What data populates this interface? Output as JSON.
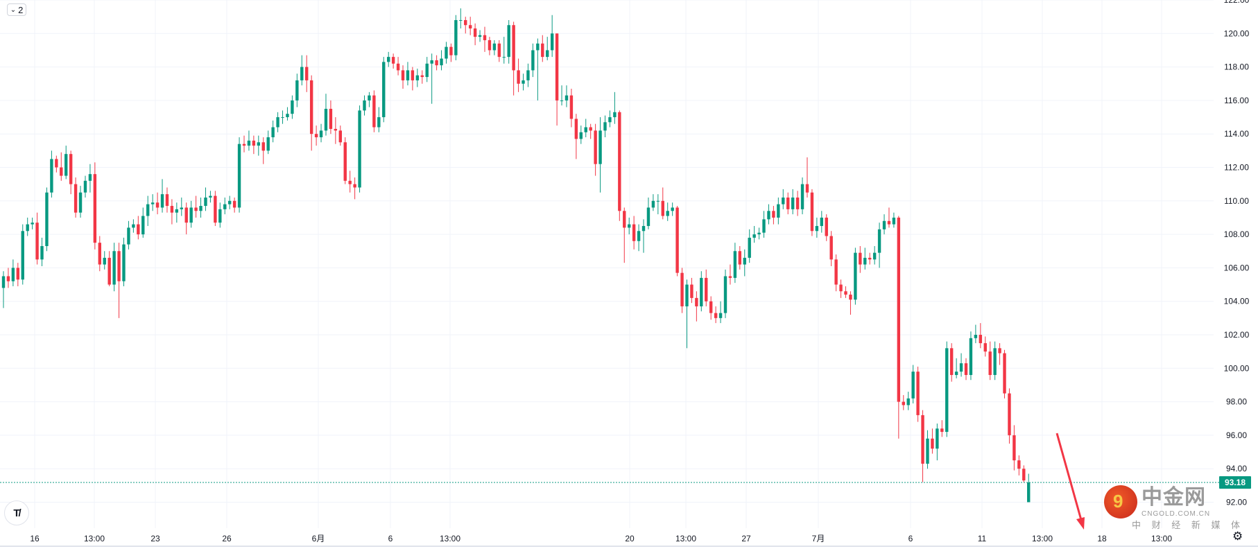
{
  "legend_toggle": {
    "icon": "chevron-down-icon",
    "count": "2"
  },
  "colors": {
    "up": "#089981",
    "down": "#f23645",
    "grid": "#f0f3fa",
    "text": "#131722",
    "price_line": "#089981",
    "arrow": "#f23645"
  },
  "watermark": {
    "logo_glyph": "9",
    "name": "中金网",
    "domain": "CNGOLD.COM.CN",
    "slogan": "中 财 经 新 媒 体"
  },
  "branding": {
    "tv_logo": "TV"
  },
  "settings_icon": "gear-icon",
  "chart_data": {
    "type": "candlestick",
    "ylim": [
      92,
      122
    ],
    "grid": true,
    "y_ticks": [
      "92.00",
      "94.00",
      "96.00",
      "98.00",
      "100.00",
      "102.00",
      "104.00",
      "106.00",
      "108.00",
      "110.00",
      "112.00",
      "114.00",
      "116.00",
      "118.00",
      "120.00",
      "122.00"
    ],
    "x_ticks": [
      "16",
      "13:00",
      "23",
      "26",
      "6月",
      "6",
      "13:00",
      "20",
      "13:00",
      "27",
      "7月",
      "6",
      "11",
      "13:00",
      "18",
      "13:00"
    ],
    "last_price": "93.18",
    "annotation": "red arrow pointing down",
    "ohlc": [
      [
        104.8,
        105.8,
        103.6,
        105.5
      ],
      [
        105.5,
        106.0,
        104.8,
        105.2
      ],
      [
        105.2,
        106.5,
        104.9,
        106.0
      ],
      [
        106.0,
        106.3,
        104.9,
        105.3
      ],
      [
        105.3,
        108.6,
        105.0,
        108.2
      ],
      [
        108.2,
        109.0,
        107.9,
        108.6
      ],
      [
        108.6,
        109.0,
        108.3,
        108.7
      ],
      [
        108.7,
        109.3,
        106.2,
        106.5
      ],
      [
        106.5,
        107.8,
        106.1,
        107.3
      ],
      [
        107.3,
        110.8,
        107.0,
        110.5
      ],
      [
        110.5,
        113.0,
        110.2,
        112.5
      ],
      [
        112.5,
        112.7,
        111.7,
        112.0
      ],
      [
        112.0,
        112.9,
        111.2,
        111.5
      ],
      [
        111.5,
        113.3,
        111.3,
        112.8
      ],
      [
        112.8,
        113.0,
        110.4,
        111.0
      ],
      [
        111.0,
        111.4,
        109.0,
        109.3
      ],
      [
        109.3,
        110.9,
        109.0,
        110.5
      ],
      [
        110.5,
        111.5,
        110.2,
        111.2
      ],
      [
        111.2,
        112.2,
        110.5,
        111.6
      ],
      [
        111.6,
        112.3,
        107.1,
        107.5
      ],
      [
        107.5,
        107.9,
        105.8,
        106.2
      ],
      [
        106.2,
        107.0,
        105.9,
        106.6
      ],
      [
        106.6,
        107.0,
        104.9,
        105.0
      ],
      [
        105.0,
        107.5,
        104.6,
        107.0
      ],
      [
        107.0,
        107.5,
        103.0,
        105.2
      ],
      [
        105.2,
        107.8,
        104.9,
        107.4
      ],
      [
        107.4,
        108.8,
        107.1,
        108.4
      ],
      [
        108.4,
        108.9,
        108.1,
        108.6
      ],
      [
        108.6,
        109.1,
        107.7,
        108.0
      ],
      [
        108.0,
        109.6,
        107.8,
        109.1
      ],
      [
        109.1,
        110.3,
        108.5,
        109.8
      ],
      [
        109.8,
        110.4,
        109.4,
        109.9
      ],
      [
        109.9,
        110.5,
        109.2,
        109.6
      ],
      [
        109.6,
        111.3,
        109.3,
        110.4
      ],
      [
        110.4,
        110.8,
        109.3,
        109.7
      ],
      [
        109.7,
        110.1,
        108.6,
        109.3
      ],
      [
        109.3,
        109.9,
        108.7,
        109.5
      ],
      [
        109.5,
        110.2,
        109.1,
        109.6
      ],
      [
        109.6,
        109.9,
        108.0,
        108.7
      ],
      [
        108.7,
        110.0,
        108.4,
        109.6
      ],
      [
        109.6,
        110.3,
        109.0,
        109.4
      ],
      [
        109.4,
        110.2,
        109.0,
        109.7
      ],
      [
        109.7,
        110.8,
        109.4,
        110.2
      ],
      [
        110.2,
        110.6,
        109.9,
        110.3
      ],
      [
        110.3,
        110.6,
        108.5,
        108.7
      ],
      [
        108.7,
        109.9,
        108.4,
        109.5
      ],
      [
        109.5,
        110.2,
        109.2,
        109.8
      ],
      [
        109.8,
        110.3,
        109.5,
        110.0
      ],
      [
        110.0,
        110.2,
        109.3,
        109.6
      ],
      [
        109.6,
        113.8,
        109.3,
        113.4
      ],
      [
        113.4,
        113.9,
        112.9,
        113.3
      ],
      [
        113.3,
        114.2,
        113.0,
        113.6
      ],
      [
        113.6,
        113.9,
        112.8,
        113.3
      ],
      [
        113.3,
        113.9,
        112.7,
        113.5
      ],
      [
        113.5,
        113.8,
        112.2,
        113.0
      ],
      [
        113.0,
        114.2,
        112.8,
        113.8
      ],
      [
        113.8,
        114.8,
        113.5,
        114.4
      ],
      [
        114.4,
        115.3,
        114.1,
        115.0
      ],
      [
        115.0,
        115.4,
        114.6,
        115.0
      ],
      [
        115.0,
        115.6,
        114.8,
        115.2
      ],
      [
        115.2,
        116.3,
        114.9,
        116.0
      ],
      [
        116.0,
        117.6,
        115.6,
        117.2
      ],
      [
        117.2,
        118.7,
        116.9,
        118.0
      ],
      [
        118.0,
        118.7,
        116.5,
        117.2
      ],
      [
        117.2,
        117.5,
        113.0,
        114.0
      ],
      [
        114.0,
        114.5,
        113.3,
        113.8
      ],
      [
        113.8,
        114.6,
        113.5,
        114.2
      ],
      [
        114.2,
        116.4,
        113.9,
        115.5
      ],
      [
        115.5,
        116.0,
        114.0,
        114.3
      ],
      [
        114.3,
        115.0,
        113.4,
        114.2
      ],
      [
        114.2,
        114.5,
        113.3,
        113.5
      ],
      [
        113.5,
        113.8,
        111.0,
        111.2
      ],
      [
        111.2,
        111.8,
        110.5,
        111.0
      ],
      [
        111.0,
        111.4,
        110.1,
        110.8
      ],
      [
        110.8,
        115.7,
        110.5,
        115.4
      ],
      [
        115.4,
        116.3,
        115.1,
        116.0
      ],
      [
        116.0,
        116.5,
        115.6,
        116.3
      ],
      [
        116.3,
        116.6,
        114.1,
        114.4
      ],
      [
        114.4,
        115.6,
        114.1,
        115.0
      ],
      [
        115.0,
        118.6,
        114.7,
        118.3
      ],
      [
        118.3,
        118.9,
        118.0,
        118.6
      ],
      [
        118.6,
        118.8,
        117.9,
        118.2
      ],
      [
        118.2,
        118.6,
        117.5,
        117.8
      ],
      [
        117.8,
        118.1,
        116.7,
        117.2
      ],
      [
        117.2,
        118.3,
        116.9,
        117.8
      ],
      [
        117.8,
        118.0,
        116.6,
        117.2
      ],
      [
        117.2,
        117.9,
        116.8,
        117.5
      ],
      [
        117.5,
        117.8,
        117.0,
        117.4
      ],
      [
        117.4,
        118.6,
        117.1,
        118.2
      ],
      [
        118.2,
        118.8,
        115.8,
        118.4
      ],
      [
        118.4,
        118.7,
        117.8,
        118.1
      ],
      [
        118.1,
        119.0,
        117.8,
        118.5
      ],
      [
        118.5,
        119.5,
        118.2,
        119.2
      ],
      [
        119.2,
        119.4,
        118.3,
        118.7
      ],
      [
        118.7,
        121.1,
        118.4,
        120.8
      ],
      [
        120.8,
        121.5,
        120.3,
        120.8
      ],
      [
        120.8,
        121.0,
        120.0,
        120.5
      ],
      [
        120.5,
        121.0,
        119.9,
        120.3
      ],
      [
        120.3,
        120.6,
        119.3,
        119.8
      ],
      [
        119.8,
        120.2,
        119.5,
        119.9
      ],
      [
        119.9,
        120.4,
        118.9,
        119.6
      ],
      [
        119.6,
        119.8,
        118.7,
        119.0
      ],
      [
        119.0,
        119.6,
        118.7,
        119.4
      ],
      [
        119.4,
        119.6,
        118.3,
        118.6
      ],
      [
        118.6,
        119.8,
        118.2,
        118.6
      ],
      [
        118.6,
        120.8,
        118.2,
        120.5
      ],
      [
        120.5,
        120.7,
        116.3,
        117.8
      ],
      [
        117.8,
        118.5,
        116.5,
        117.0
      ],
      [
        117.0,
        117.6,
        116.6,
        117.2
      ],
      [
        117.2,
        118.2,
        116.8,
        117.8
      ],
      [
        117.8,
        119.4,
        117.4,
        119.0
      ],
      [
        119.0,
        119.7,
        116.0,
        119.4
      ],
      [
        119.4,
        119.9,
        118.3,
        118.6
      ],
      [
        118.6,
        119.8,
        118.4,
        119.0
      ],
      [
        119.0,
        121.1,
        118.6,
        120.0
      ],
      [
        120.0,
        120.0,
        114.5,
        116.0
      ],
      [
        116.0,
        116.9,
        115.7,
        116.0
      ],
      [
        116.0,
        116.9,
        115.6,
        116.3
      ],
      [
        116.3,
        116.7,
        114.4,
        114.9
      ],
      [
        114.9,
        115.2,
        112.5,
        113.7
      ],
      [
        113.7,
        114.5,
        113.4,
        114.1
      ],
      [
        114.1,
        114.9,
        113.8,
        114.4
      ],
      [
        114.4,
        114.6,
        113.7,
        114.2
      ],
      [
        114.2,
        114.6,
        111.5,
        112.2
      ],
      [
        112.2,
        115.0,
        110.5,
        114.2
      ],
      [
        114.2,
        115.1,
        113.8,
        114.7
      ],
      [
        114.7,
        115.4,
        114.4,
        115.0
      ],
      [
        115.0,
        116.5,
        114.6,
        115.3
      ],
      [
        115.3,
        115.4,
        108.8,
        109.4
      ],
      [
        109.4,
        109.6,
        106.3,
        108.4
      ],
      [
        108.4,
        109.0,
        108.0,
        108.6
      ],
      [
        108.6,
        109.1,
        107.1,
        107.6
      ],
      [
        107.6,
        108.6,
        107.0,
        108.2
      ],
      [
        108.2,
        108.9,
        106.9,
        108.5
      ],
      [
        108.5,
        110.2,
        108.3,
        109.6
      ],
      [
        109.6,
        110.4,
        109.4,
        110.0
      ],
      [
        110.0,
        110.4,
        109.2,
        110.0
      ],
      [
        110.0,
        110.8,
        108.9,
        109.1
      ],
      [
        109.1,
        109.9,
        108.8,
        109.4
      ],
      [
        109.4,
        109.9,
        109.1,
        109.6
      ],
      [
        109.6,
        109.7,
        105.5,
        105.7
      ],
      [
        105.7,
        106.0,
        103.3,
        103.7
      ],
      [
        103.7,
        105.3,
        101.2,
        105.0
      ],
      [
        105.0,
        105.4,
        103.9,
        104.2
      ],
      [
        104.2,
        104.6,
        102.8,
        103.7
      ],
      [
        103.7,
        105.8,
        103.4,
        105.4
      ],
      [
        105.4,
        105.9,
        103.7,
        104.0
      ],
      [
        104.0,
        104.3,
        102.9,
        103.3
      ],
      [
        103.3,
        103.7,
        102.7,
        103.0
      ],
      [
        103.0,
        104.0,
        102.7,
        103.3
      ],
      [
        103.3,
        105.9,
        103.0,
        105.5
      ],
      [
        105.5,
        106.2,
        105.0,
        105.4
      ],
      [
        105.4,
        107.5,
        105.1,
        107.0
      ],
      [
        107.0,
        107.3,
        105.9,
        106.2
      ],
      [
        106.2,
        107.1,
        105.5,
        106.6
      ],
      [
        106.6,
        108.3,
        106.3,
        107.8
      ],
      [
        107.8,
        108.5,
        107.5,
        108.0
      ],
      [
        108.0,
        108.4,
        107.7,
        108.1
      ],
      [
        108.1,
        109.4,
        107.8,
        108.9
      ],
      [
        108.9,
        109.8,
        108.6,
        109.4
      ],
      [
        109.4,
        109.7,
        108.6,
        109.0
      ],
      [
        109.0,
        110.2,
        108.6,
        109.8
      ],
      [
        109.8,
        110.7,
        109.5,
        110.2
      ],
      [
        110.2,
        110.5,
        109.2,
        109.5
      ],
      [
        109.5,
        110.7,
        109.2,
        110.2
      ],
      [
        110.2,
        110.6,
        109.1,
        109.5
      ],
      [
        109.5,
        111.4,
        109.2,
        111.0
      ],
      [
        111.0,
        112.6,
        110.2,
        110.5
      ],
      [
        110.5,
        110.7,
        107.9,
        108.2
      ],
      [
        108.2,
        109.0,
        107.8,
        108.5
      ],
      [
        108.5,
        109.4,
        108.1,
        109.0
      ],
      [
        109.0,
        109.2,
        107.6,
        107.9
      ],
      [
        107.9,
        108.2,
        106.1,
        106.5
      ],
      [
        106.5,
        106.8,
        104.6,
        105.0
      ],
      [
        105.0,
        105.3,
        104.2,
        104.6
      ],
      [
        104.6,
        104.9,
        104.2,
        104.4
      ],
      [
        104.4,
        104.6,
        103.2,
        104.1
      ],
      [
        104.1,
        107.2,
        103.8,
        106.9
      ],
      [
        106.9,
        107.3,
        105.7,
        106.2
      ],
      [
        106.2,
        107.2,
        105.9,
        106.6
      ],
      [
        106.6,
        106.9,
        106.2,
        106.5
      ],
      [
        106.5,
        107.3,
        106.2,
        106.9
      ],
      [
        106.9,
        108.7,
        106.0,
        108.3
      ],
      [
        108.3,
        109.2,
        108.0,
        108.8
      ],
      [
        108.8,
        109.6,
        108.4,
        108.6
      ],
      [
        108.6,
        109.3,
        108.4,
        109.0
      ],
      [
        109.0,
        109.1,
        95.8,
        98.0
      ],
      [
        98.0,
        98.4,
        97.5,
        97.8
      ],
      [
        97.8,
        98.6,
        97.5,
        98.2
      ],
      [
        98.2,
        100.2,
        97.9,
        99.8
      ],
      [
        99.8,
        100.1,
        96.8,
        97.2
      ],
      [
        97.2,
        97.5,
        93.2,
        94.3
      ],
      [
        94.3,
        96.3,
        94.0,
        95.8
      ],
      [
        95.8,
        96.4,
        94.9,
        95.2
      ],
      [
        95.2,
        96.7,
        94.5,
        96.4
      ],
      [
        96.4,
        96.9,
        95.9,
        96.2
      ],
      [
        96.2,
        101.6,
        95.9,
        101.2
      ],
      [
        101.2,
        101.5,
        99.2,
        99.6
      ],
      [
        99.6,
        100.6,
        99.4,
        99.8
      ],
      [
        99.8,
        100.9,
        99.5,
        100.3
      ],
      [
        100.3,
        100.6,
        99.3,
        99.6
      ],
      [
        99.6,
        102.2,
        99.3,
        101.8
      ],
      [
        101.8,
        102.6,
        101.5,
        102.0
      ],
      [
        102.0,
        102.7,
        101.2,
        101.5
      ],
      [
        101.5,
        101.9,
        100.7,
        101.0
      ],
      [
        101.0,
        101.6,
        99.3,
        99.6
      ],
      [
        99.6,
        101.6,
        99.3,
        101.2
      ],
      [
        101.2,
        101.5,
        100.2,
        100.9
      ],
      [
        100.9,
        101.1,
        98.2,
        98.5
      ],
      [
        98.5,
        98.8,
        95.5,
        96.0
      ],
      [
        96.0,
        96.6,
        93.9,
        94.5
      ],
      [
        94.5,
        94.8,
        93.6,
        94.0
      ],
      [
        94.0,
        94.2,
        93.2,
        93.3
      ],
      [
        92.0,
        93.7,
        92.0,
        93.18
      ]
    ]
  }
}
